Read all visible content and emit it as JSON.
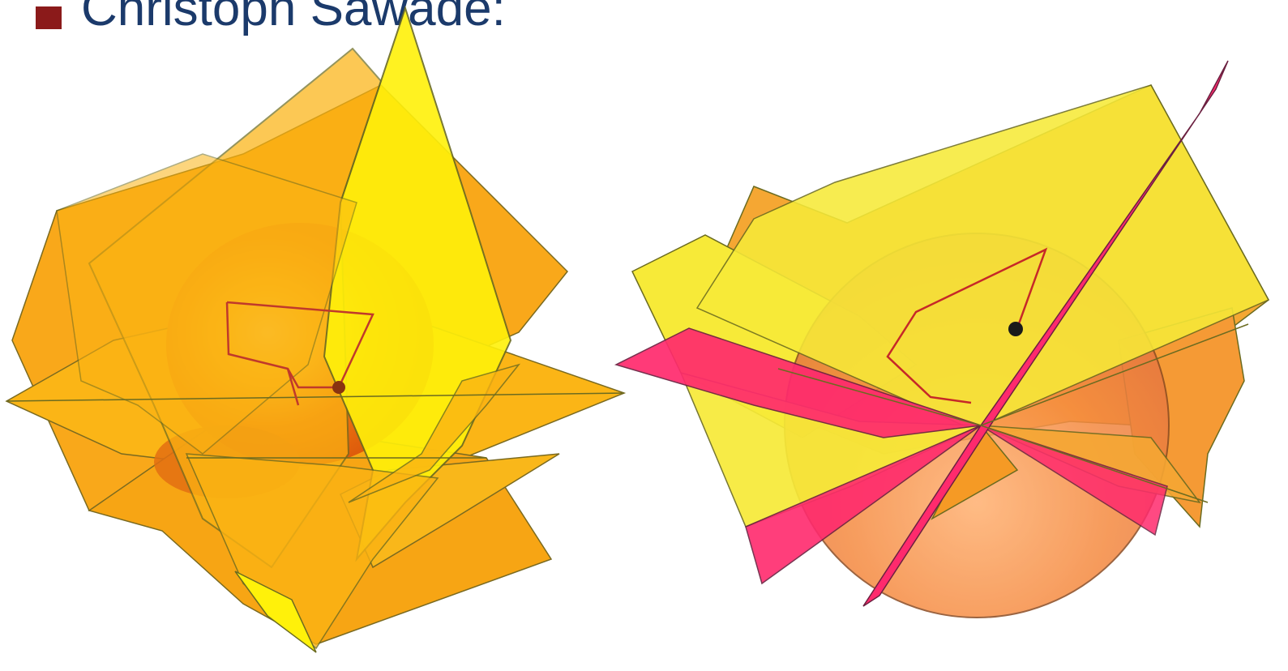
{
  "slide": {
    "heading": "Christoph Sawade:",
    "heading_color": "#1b3a6b",
    "bullet_color": "#8b1a1a"
  },
  "figures": [
    {
      "name": "left-figure",
      "description_icon": "orange-sphere-with-planes",
      "colors": {
        "plane_orange": "#fbb313",
        "plane_yellow": "#fff10a",
        "sphere": "#f07a10",
        "path": "#c0392b"
      }
    },
    {
      "name": "right-figure",
      "description_icon": "yellow-sphere-with-planes",
      "colors": {
        "plane_yellow": "#f7ea38",
        "plane_orange": "#f5a733",
        "plane_pink": "#ff2a6d",
        "sphere": "#f58a40",
        "path": "#c62828"
      }
    }
  ]
}
